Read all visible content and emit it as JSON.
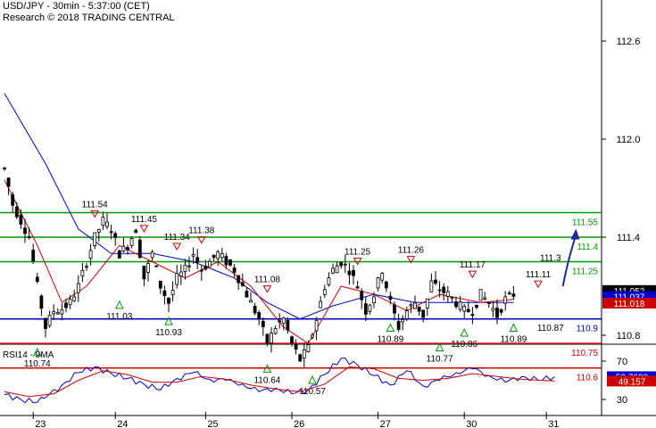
{
  "header": {
    "title": "USD/JPY - 30min - 5:37:00 (CET)",
    "copyright": "Research © 2018 TRADING CENTRAL"
  },
  "colors": {
    "candle": "#000000",
    "ma_fast": "#cc0000",
    "ma_slow": "#0000cc",
    "support_line": "#0000cc",
    "resistance_line": "#009900",
    "lower_line": "#cc0000",
    "arrow": "#1a2a99",
    "rsi_line": "#0000cc",
    "rsi_ma": "#cc0000"
  },
  "chart_data": [
    {
      "type": "candlestick",
      "title": "USD/JPY - 30min - 5:37:00 (CET)",
      "x_tick_labels": [
        "23",
        "24",
        "25",
        "26",
        "27",
        "30",
        "31"
      ],
      "y_tick_labels": [
        "112.6",
        "112.0",
        "111.4",
        "110.8"
      ],
      "ylim": [
        110.47,
        112.84
      ],
      "price_path": [
        {
          "t": 0,
          "v": 111.82
        },
        {
          "t": 2,
          "v": 111.6
        },
        {
          "t": 4,
          "v": 111.5
        },
        {
          "t": 6,
          "v": 111.4
        },
        {
          "t": 8,
          "v": 111.1
        },
        {
          "t": 10,
          "v": 110.85
        },
        {
          "t": 12,
          "v": 110.95
        },
        {
          "t": 14,
          "v": 110.96
        },
        {
          "t": 16,
          "v": 111.0
        },
        {
          "t": 18,
          "v": 111.1
        },
        {
          "t": 20,
          "v": 111.25
        },
        {
          "t": 22,
          "v": 111.4
        },
        {
          "t": 24,
          "v": 111.5
        },
        {
          "t": 26,
          "v": 111.45
        },
        {
          "t": 28,
          "v": 111.3
        },
        {
          "t": 30,
          "v": 111.35
        },
        {
          "t": 32,
          "v": 111.45
        },
        {
          "t": 34,
          "v": 111.15
        },
        {
          "t": 36,
          "v": 111.3
        },
        {
          "t": 38,
          "v": 111.1
        },
        {
          "t": 40,
          "v": 111.0
        },
        {
          "t": 42,
          "v": 111.15
        },
        {
          "t": 44,
          "v": 111.2
        },
        {
          "t": 46,
          "v": 111.3
        },
        {
          "t": 48,
          "v": 111.2
        },
        {
          "t": 50,
          "v": 111.25
        },
        {
          "t": 52,
          "v": 111.3
        },
        {
          "t": 54,
          "v": 111.25
        },
        {
          "t": 56,
          "v": 111.2
        },
        {
          "t": 58,
          "v": 111.1
        },
        {
          "t": 60,
          "v": 111.0
        },
        {
          "t": 62,
          "v": 110.9
        },
        {
          "t": 64,
          "v": 110.75
        },
        {
          "t": 66,
          "v": 110.85
        },
        {
          "t": 68,
          "v": 110.9
        },
        {
          "t": 70,
          "v": 110.75
        },
        {
          "t": 72,
          "v": 110.65
        },
        {
          "t": 74,
          "v": 110.72
        },
        {
          "t": 76,
          "v": 110.9
        },
        {
          "t": 78,
          "v": 111.1
        },
        {
          "t": 80,
          "v": 111.2
        },
        {
          "t": 82,
          "v": 111.25
        },
        {
          "t": 84,
          "v": 111.2
        },
        {
          "t": 86,
          "v": 111.1
        },
        {
          "t": 88,
          "v": 110.95
        },
        {
          "t": 90,
          "v": 111.05
        },
        {
          "t": 92,
          "v": 111.2
        },
        {
          "t": 94,
          "v": 111.0
        },
        {
          "t": 96,
          "v": 110.85
        },
        {
          "t": 98,
          "v": 110.95
        },
        {
          "t": 100,
          "v": 111.0
        },
        {
          "t": 102,
          "v": 110.92
        },
        {
          "t": 104,
          "v": 111.12
        },
        {
          "t": 106,
          "v": 111.08
        },
        {
          "t": 108,
          "v": 111.05
        },
        {
          "t": 110,
          "v": 111.0
        },
        {
          "t": 112,
          "v": 110.95
        },
        {
          "t": 114,
          "v": 110.95
        },
        {
          "t": 116,
          "v": 111.05
        },
        {
          "t": 118,
          "v": 111.0
        },
        {
          "t": 120,
          "v": 110.92
        },
        {
          "t": 122,
          "v": 111.02
        },
        {
          "t": 124,
          "v": 111.05
        }
      ],
      "ma_fast_path": [
        {
          "t": 0,
          "v": 111.75
        },
        {
          "t": 8,
          "v": 111.35
        },
        {
          "t": 14,
          "v": 111.0
        },
        {
          "t": 20,
          "v": 111.1
        },
        {
          "t": 28,
          "v": 111.35
        },
        {
          "t": 36,
          "v": 111.25
        },
        {
          "t": 44,
          "v": 111.15
        },
        {
          "t": 52,
          "v": 111.25
        },
        {
          "t": 60,
          "v": 111.1
        },
        {
          "t": 68,
          "v": 110.85
        },
        {
          "t": 74,
          "v": 110.75
        },
        {
          "t": 82,
          "v": 111.1
        },
        {
          "t": 90,
          "v": 111.05
        },
        {
          "t": 98,
          "v": 110.95
        },
        {
          "t": 106,
          "v": 111.05
        },
        {
          "t": 116,
          "v": 111.0
        },
        {
          "t": 124,
          "v": 111.02
        }
      ],
      "ma_slow_path": [
        {
          "t": 0,
          "v": 112.28
        },
        {
          "t": 10,
          "v": 111.85
        },
        {
          "t": 18,
          "v": 111.45
        },
        {
          "t": 26,
          "v": 111.3
        },
        {
          "t": 36,
          "v": 111.3
        },
        {
          "t": 46,
          "v": 111.25
        },
        {
          "t": 56,
          "v": 111.15
        },
        {
          "t": 64,
          "v": 111.0
        },
        {
          "t": 72,
          "v": 110.9
        },
        {
          "t": 80,
          "v": 110.98
        },
        {
          "t": 90,
          "v": 111.05
        },
        {
          "t": 100,
          "v": 111.0
        },
        {
          "t": 110,
          "v": 111.0
        },
        {
          "t": 124,
          "v": 111.0
        }
      ],
      "levels": [
        {
          "value": 111.55,
          "label": "111.55",
          "role": "resistance"
        },
        {
          "value": 111.4,
          "label": "111.4",
          "role": "resistance"
        },
        {
          "value": 111.25,
          "label": "111.25",
          "role": "resistance"
        },
        {
          "value": 110.9,
          "label": "110.9",
          "role": "pivot"
        },
        {
          "value": 110.75,
          "label": "110.75",
          "role": "support"
        },
        {
          "value": 110.6,
          "label": "110.6",
          "role": "support"
        }
      ],
      "price_tags": [
        {
          "value": 111.052,
          "label": "111.052",
          "bg": "#000000",
          "fg": "#ffffff"
        },
        {
          "value": 111.037,
          "label": "111.037",
          "bg": "#0000cc",
          "fg": "#ffffff"
        },
        {
          "value": 111.018,
          "label": "111.018",
          "bg": "#cc0000",
          "fg": "#ffffff"
        }
      ],
      "annotations": [
        {
          "t": 22,
          "v": 111.54,
          "label": "111.54",
          "marker": "down"
        },
        {
          "t": 34,
          "v": 111.45,
          "label": "111.45",
          "marker": "down"
        },
        {
          "t": 42,
          "v": 111.34,
          "label": "111.34",
          "marker": "down"
        },
        {
          "t": 48,
          "v": 111.38,
          "label": "111.38",
          "marker": "down"
        },
        {
          "t": 64,
          "v": 111.08,
          "label": "111.08",
          "marker": "down"
        },
        {
          "t": 86,
          "v": 111.25,
          "label": "111.25",
          "marker": "down"
        },
        {
          "t": 99,
          "v": 111.26,
          "label": "111.26",
          "marker": "down"
        },
        {
          "t": 114,
          "v": 111.17,
          "label": "111.17",
          "marker": "down"
        },
        {
          "t": 130,
          "v": 111.11,
          "label": "111.11",
          "marker": "down"
        },
        {
          "t": 133,
          "v": 111.3,
          "label": "111.3",
          "marker": "none"
        },
        {
          "t": 8,
          "v": 110.74,
          "label": "110.74",
          "marker": "up"
        },
        {
          "t": 28,
          "v": 111.03,
          "label": "111.03",
          "marker": "up"
        },
        {
          "t": 40,
          "v": 110.93,
          "label": "110.93",
          "marker": "up"
        },
        {
          "t": 64,
          "v": 110.64,
          "label": "110.64",
          "marker": "up"
        },
        {
          "t": 75,
          "v": 110.57,
          "label": "110.57",
          "marker": "up"
        },
        {
          "t": 94,
          "v": 110.89,
          "label": "110.89",
          "marker": "up"
        },
        {
          "t": 106,
          "v": 110.77,
          "label": "110.77",
          "marker": "up"
        },
        {
          "t": 112,
          "v": 110.86,
          "label": "110.86",
          "marker": "up"
        },
        {
          "t": 124,
          "v": 110.89,
          "label": "110.89",
          "marker": "up"
        },
        {
          "t": 133,
          "v": 110.87,
          "label": "110.87",
          "marker": "none"
        }
      ],
      "forecast_arrow": {
        "from_t": 136,
        "from_v": 111.1,
        "to_t": 139,
        "to_v": 111.43
      }
    },
    {
      "type": "line",
      "title": "RSI14 - 9MA",
      "y_tick_labels": [
        "70",
        "30"
      ],
      "ylim": [
        17,
        85
      ],
      "series": [
        {
          "name": "RSI14",
          "points": [
            {
              "t": 0,
              "v": 35
            },
            {
              "t": 4,
              "v": 30
            },
            {
              "t": 8,
              "v": 27
            },
            {
              "t": 10,
              "v": 32
            },
            {
              "t": 14,
              "v": 45
            },
            {
              "t": 18,
              "v": 58
            },
            {
              "t": 22,
              "v": 64
            },
            {
              "t": 26,
              "v": 57
            },
            {
              "t": 30,
              "v": 52
            },
            {
              "t": 34,
              "v": 46
            },
            {
              "t": 38,
              "v": 40
            },
            {
              "t": 42,
              "v": 52
            },
            {
              "t": 46,
              "v": 58
            },
            {
              "t": 50,
              "v": 51
            },
            {
              "t": 54,
              "v": 50
            },
            {
              "t": 58,
              "v": 46
            },
            {
              "t": 62,
              "v": 38
            },
            {
              "t": 66,
              "v": 42
            },
            {
              "t": 70,
              "v": 36
            },
            {
              "t": 74,
              "v": 40
            },
            {
              "t": 78,
              "v": 56
            },
            {
              "t": 82,
              "v": 73
            },
            {
              "t": 86,
              "v": 66
            },
            {
              "t": 90,
              "v": 55
            },
            {
              "t": 94,
              "v": 45
            },
            {
              "t": 98,
              "v": 60
            },
            {
              "t": 102,
              "v": 44
            },
            {
              "t": 106,
              "v": 50
            },
            {
              "t": 110,
              "v": 58
            },
            {
              "t": 114,
              "v": 62
            },
            {
              "t": 118,
              "v": 55
            },
            {
              "t": 122,
              "v": 48
            },
            {
              "t": 126,
              "v": 54
            },
            {
              "t": 130,
              "v": 50
            },
            {
              "t": 134,
              "v": 53.7698
            }
          ]
        },
        {
          "name": "9MA",
          "points": [
            {
              "t": 0,
              "v": 38
            },
            {
              "t": 6,
              "v": 33
            },
            {
              "t": 12,
              "v": 36
            },
            {
              "t": 18,
              "v": 50
            },
            {
              "t": 24,
              "v": 60
            },
            {
              "t": 30,
              "v": 56
            },
            {
              "t": 36,
              "v": 48
            },
            {
              "t": 42,
              "v": 48
            },
            {
              "t": 48,
              "v": 54
            },
            {
              "t": 54,
              "v": 51
            },
            {
              "t": 60,
              "v": 45
            },
            {
              "t": 66,
              "v": 41
            },
            {
              "t": 72,
              "v": 38
            },
            {
              "t": 78,
              "v": 46
            },
            {
              "t": 84,
              "v": 64
            },
            {
              "t": 90,
              "v": 62
            },
            {
              "t": 96,
              "v": 52
            },
            {
              "t": 102,
              "v": 50
            },
            {
              "t": 108,
              "v": 52
            },
            {
              "t": 114,
              "v": 57
            },
            {
              "t": 120,
              "v": 54
            },
            {
              "t": 126,
              "v": 51
            },
            {
              "t": 134,
              "v": 49.157
            }
          ]
        }
      ],
      "value_tags": [
        {
          "value": 53.7698,
          "label": "53.7698",
          "bg": "#0000cc",
          "fg": "#ffffff"
        },
        {
          "value": 49.157,
          "label": "49.157",
          "bg": "#cc0000",
          "fg": "#ffffff"
        }
      ]
    }
  ]
}
